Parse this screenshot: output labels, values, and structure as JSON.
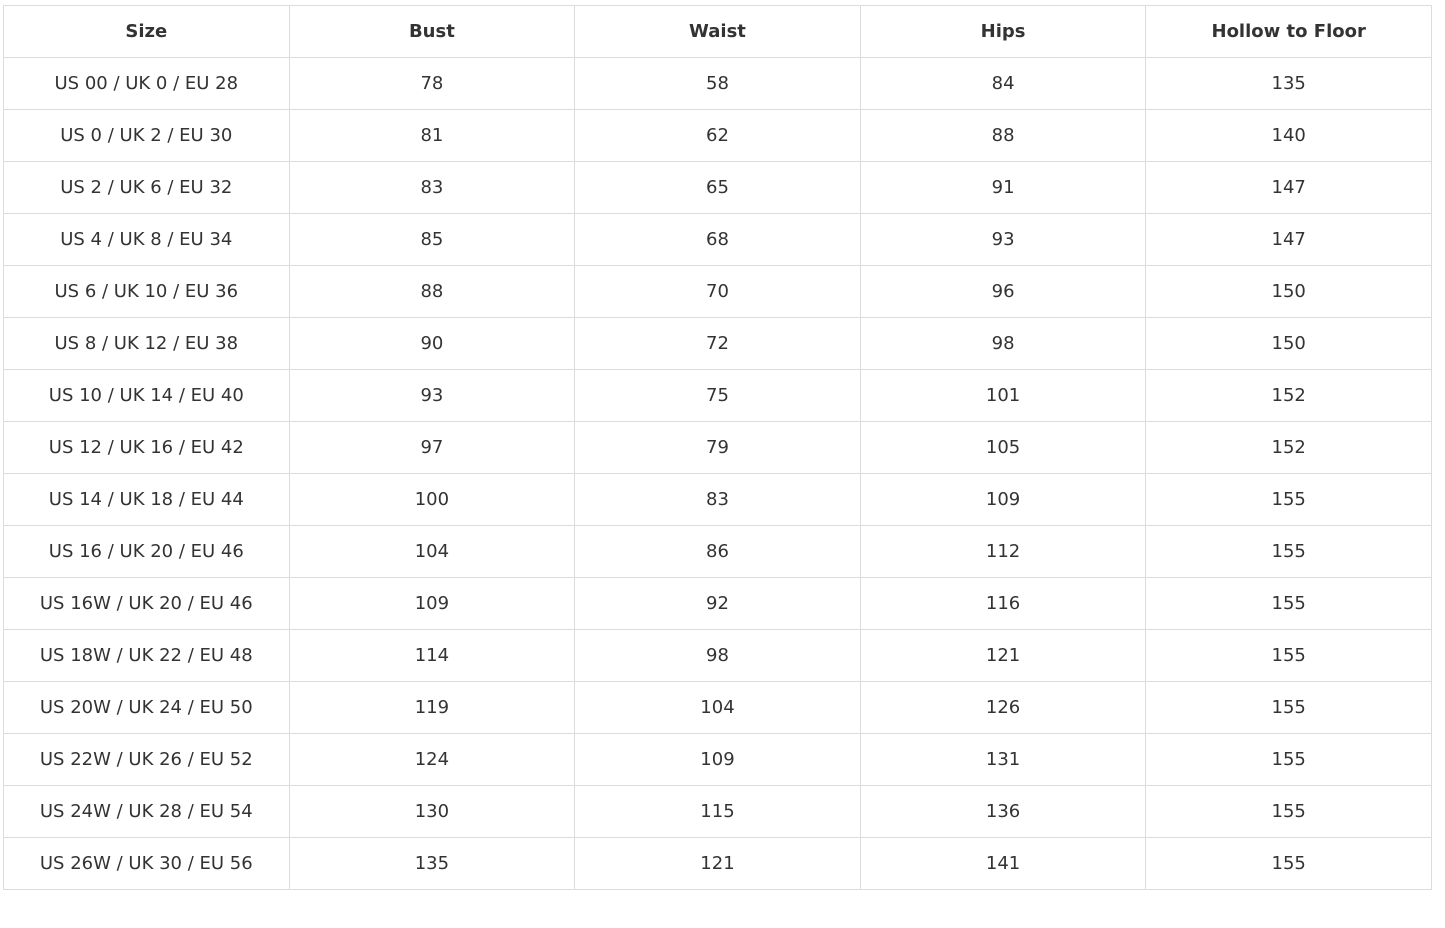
{
  "table": {
    "header": [
      "Size",
      "Bust",
      "Waist",
      "Hips",
      "Hollow to Floor"
    ],
    "rows": [
      [
        "US 00 / UK 0 / EU 28",
        78,
        58,
        84,
        135
      ],
      [
        "US 0 / UK 2 / EU 30",
        81,
        62,
        88,
        140
      ],
      [
        "US 2 / UK 6 / EU 32",
        83,
        65,
        91,
        147
      ],
      [
        "US 4 / UK 8 / EU 34",
        85,
        68,
        93,
        147
      ],
      [
        "US 6 / UK 10 / EU 36",
        88,
        70,
        96,
        150
      ],
      [
        "US 8 / UK 12 / EU 38",
        90,
        72,
        98,
        150
      ],
      [
        "US 10 / UK 14 / EU 40",
        93,
        75,
        101,
        152
      ],
      [
        "US 12 / UK 16 / EU 42",
        97,
        79,
        105,
        152
      ],
      [
        "US 14 / UK 18 / EU 44",
        100,
        83,
        109,
        155
      ],
      [
        "US 16 / UK 20 / EU 46",
        104,
        86,
        112,
        155
      ],
      [
        "US 16W / UK 20 / EU 46",
        109,
        92,
        116,
        155
      ],
      [
        "US 18W / UK 22 / EU 48",
        114,
        98,
        121,
        155
      ],
      [
        "US 20W / UK 24 / EU 50",
        119,
        104,
        126,
        155
      ],
      [
        "US 22W / UK 26 / EU 52",
        124,
        109,
        131,
        155
      ],
      [
        "US 24W / UK 28 / EU 54",
        130,
        115,
        136,
        155
      ],
      [
        "US 26W / UK 30 / EU 56",
        135,
        121,
        141,
        155
      ]
    ]
  }
}
